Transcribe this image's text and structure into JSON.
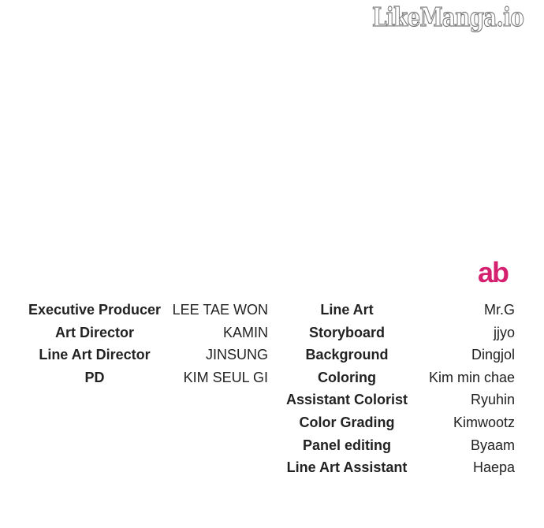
{
  "watermark": "LikeManga.io",
  "logo": "ab",
  "left_credits": [
    {
      "role": "Executive Producer",
      "name": "LEE TAE WON"
    },
    {
      "role": "Art Director",
      "name": "KAMIN"
    },
    {
      "role": "Line Art Director",
      "name": "JINSUNG"
    },
    {
      "role": "PD",
      "name": "KIM SEUL GI"
    }
  ],
  "right_credits": [
    {
      "role": "Line Art",
      "name": "Mr.G"
    },
    {
      "role": "Storyboard",
      "name": "jjyo"
    },
    {
      "role": "Background",
      "name": "Dingjol"
    },
    {
      "role": "Coloring",
      "name": "Kim min chae"
    },
    {
      "role": "Assistant Colorist",
      "name": "Ryuhin"
    },
    {
      "role": "Color Grading",
      "name": "Kimwootz"
    },
    {
      "role": "Panel editing",
      "name": "Byaam"
    },
    {
      "role": "Line Art Assistant",
      "name": "Haepa"
    }
  ]
}
